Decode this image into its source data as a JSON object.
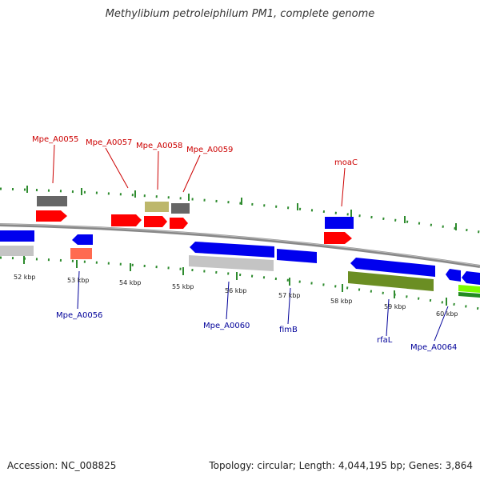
{
  "title": "Methylibium petroleiphilum PM1, complete genome",
  "footer": {
    "accession": "Accession: NC_008825",
    "topology": "Topology: circular; Length: 4,044,195 bp; Genes: 3,864"
  },
  "colors": {
    "backbone": "#888888",
    "tick": "#2e8b2e",
    "forward_gene": "#ff0000",
    "reverse_gene": "#0000ee",
    "label_forward": "#cc0000",
    "label_reverse": "#000099",
    "gray": "#666666",
    "light_gray": "#c4c4c4",
    "khaki": "#bdb76b",
    "olive": "#6b8e23",
    "salmon": "#ff6a50",
    "lime": "#7cfc00",
    "green": "#228b22"
  },
  "scale_labels": [
    "52 kbp",
    "53 kbp",
    "54 kbp",
    "55 kbp",
    "56 kbp",
    "57 kbp",
    "58 kbp",
    "59 kbp",
    "60 kbp"
  ],
  "gene_labels_forward": [
    "Mpe_A0055",
    "Mpe_A0057",
    "Mpe_A0058",
    "Mpe_A0059",
    "moaC"
  ],
  "gene_labels_reverse": [
    "Mpe_A0056",
    "Mpe_A0060",
    "fimB",
    "rfaL",
    "Mpe_A0064"
  ]
}
